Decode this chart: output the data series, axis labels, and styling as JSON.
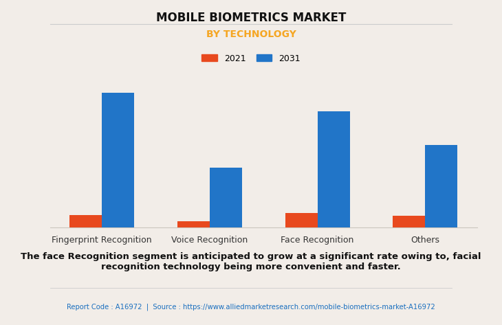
{
  "title": "MOBILE BIOMETRICS MARKET",
  "subtitle": "BY TECHNOLOGY",
  "categories": [
    "Fingerprint Recognition",
    "Voice Recognition",
    "Face Recognition",
    "Others"
  ],
  "values_2021": [
    0.9,
    0.45,
    1.0,
    0.82
  ],
  "values_2031": [
    9.5,
    4.2,
    8.2,
    5.8
  ],
  "color_2021": "#e8491e",
  "color_2031": "#2175c8",
  "legend_labels": [
    "2021",
    "2031"
  ],
  "background_color": "#f2ede8",
  "grid_color": "#ccc6be",
  "title_fontsize": 12,
  "subtitle_fontsize": 10,
  "subtitle_color": "#f5a623",
  "annotation_text": "The face Recognition segment is anticipated to grow at a significant rate owing to, facial\nrecognition technology being more convenient and faster.",
  "source_text": "Report Code : A16972  |  Source : https://www.alliedmarketresearch.com/mobile-biometrics-market-A16972",
  "annotation_fontsize": 9.5,
  "source_fontsize": 7.2,
  "source_color": "#1a6fbf",
  "bar_width": 0.3,
  "ylim": [
    0,
    11
  ]
}
